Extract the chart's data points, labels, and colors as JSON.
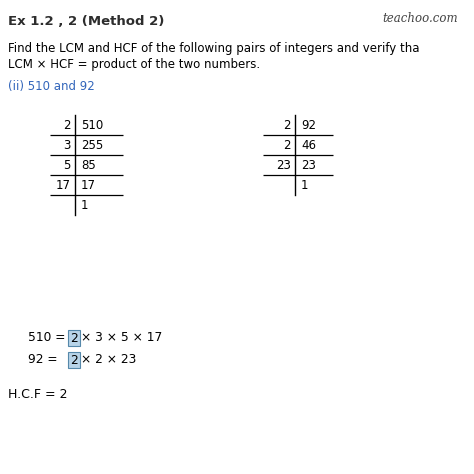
{
  "title": "Ex 1.2 , 2 (Method 2)",
  "watermark": "teachoo.com",
  "problem_text1": "Find the LCM and HCF of the following pairs of integers and verify tha",
  "problem_text2": "LCM × HCF = product of the two numbers.",
  "subpart": "(ii) 510 and 92",
  "table1_divisors": [
    "2",
    "3",
    "5",
    "17",
    ""
  ],
  "table1_dividends": [
    "510",
    "255",
    "85",
    "17",
    "1"
  ],
  "table2_divisors": [
    "2",
    "2",
    "23",
    ""
  ],
  "table2_dividends": [
    "92",
    "46",
    "23",
    "1"
  ],
  "fact1_prefix": "510 = ",
  "fact1_highlight": "2",
  "fact1_suffix": "× 3 × 5 × 17",
  "fact2_prefix": "92 = ",
  "fact2_highlight": "2",
  "fact2_suffix": "× 2 × 23",
  "hcf_text": "H.C.F = 2",
  "bg_color": "#ffffff",
  "text_color": "#000000",
  "title_color": "#1a1a1a",
  "title_font_color": "#2d2d2d",
  "subpart_color": "#3366bb",
  "highlight_box_color": "#b8d4e8",
  "highlight_box_edge": "#5588aa",
  "watermark_color": "#444444"
}
